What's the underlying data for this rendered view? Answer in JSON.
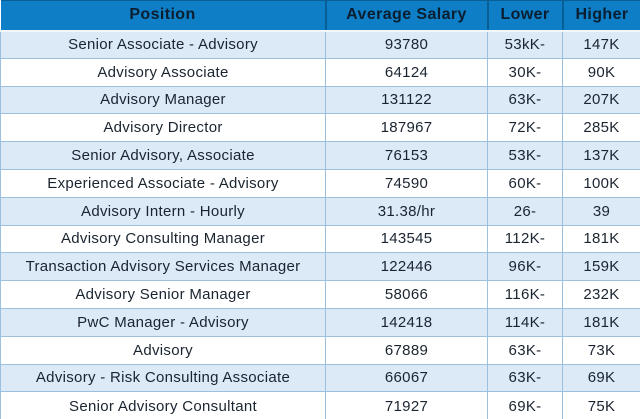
{
  "colors": {
    "header_bg": "#0E7EC6",
    "header_text": "#0B1E30",
    "band_bg": "#DCE9F6",
    "white_bg": "#FFFFFF",
    "body_text": "#1A2430",
    "grid_light": "#9CC0DE",
    "grid_dark": "#0A5E96"
  },
  "chart_data": {
    "type": "table",
    "title": "",
    "columns": [
      "Position",
      "Average Salary",
      "Lower",
      "Higher"
    ],
    "rows": [
      [
        "Senior Associate - Advisory",
        "93780",
        "53kK-",
        "147K"
      ],
      [
        "Advisory Associate",
        "64124",
        "30K-",
        "90K"
      ],
      [
        "Advisory Manager",
        "131122",
        "63K-",
        "207K"
      ],
      [
        "Advisory Director",
        "187967",
        "72K-",
        "285K"
      ],
      [
        "Senior Advisory, Associate",
        "76153",
        "53K-",
        "137K"
      ],
      [
        "Experienced Associate - Advisory",
        "74590",
        "60K-",
        "100K"
      ],
      [
        "Advisory Intern - Hourly",
        "31.38/hr",
        "26-",
        "39"
      ],
      [
        "Advisory Consulting Manager",
        "143545",
        "112K-",
        "181K"
      ],
      [
        "Transaction Advisory Services Manager",
        "122446",
        "96K-",
        "159K"
      ],
      [
        "Advisory Senior Manager",
        "58066",
        "116K-",
        "232K"
      ],
      [
        "PwC Manager - Advisory",
        "142418",
        "114K-",
        "181K"
      ],
      [
        "Advisory",
        "67889",
        "63K-",
        "73K"
      ],
      [
        "Advisory - Risk Consulting Associate",
        "66067",
        "63K-",
        "69K"
      ],
      [
        "Senior Advisory Consultant",
        "71927",
        "69K-",
        "75K"
      ]
    ],
    "layout": {
      "banding": "odd-rows-light-blue",
      "alignment": "center",
      "grid": true
    }
  }
}
